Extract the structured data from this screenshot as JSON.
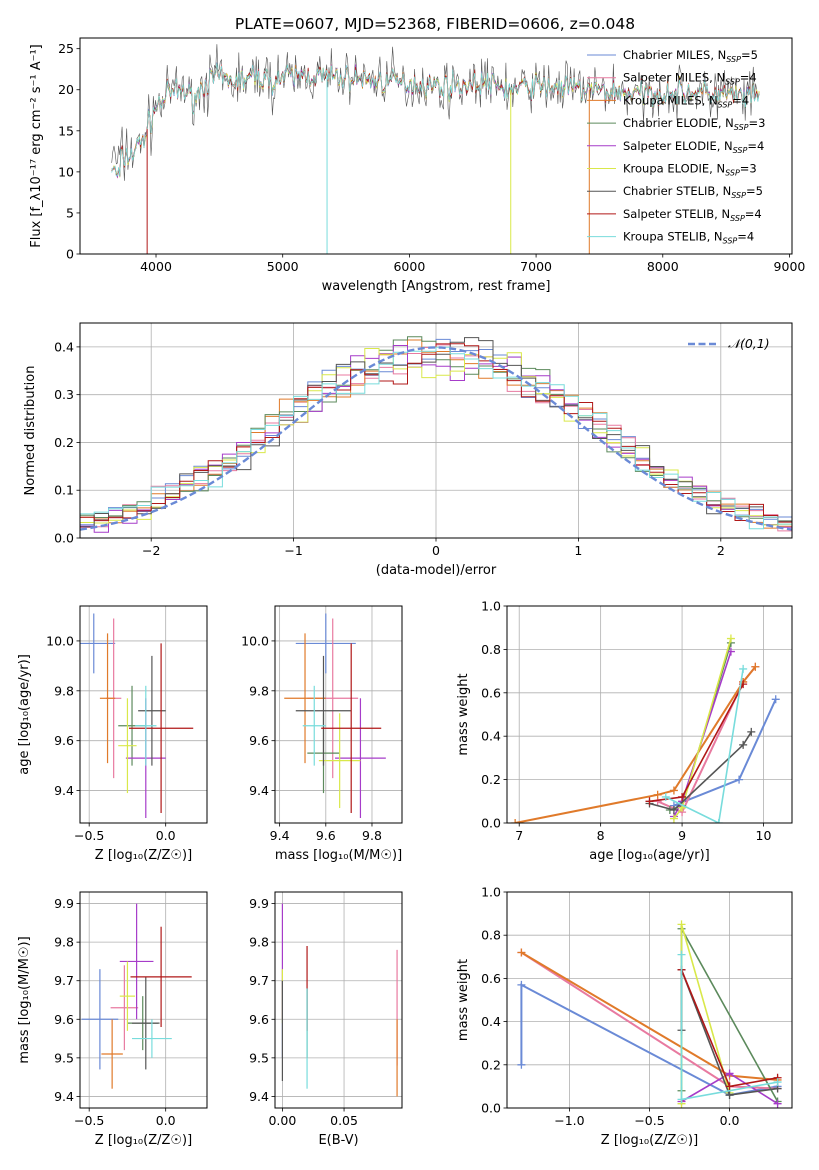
{
  "figure": {
    "title": "PLATE=0607, MJD=52368, FIBERID=0606, z=0.048"
  },
  "palette": [
    "#6a8ad6",
    "#e87aa0",
    "#e07a2a",
    "#5c8a5c",
    "#a63cc9",
    "#d9e84a",
    "#555555",
    "#b01818",
    "#78dcdc"
  ],
  "chart_data": [
    {
      "id": "spectrum",
      "type": "line",
      "xlabel": "wavelength [Angstrom, rest frame]",
      "ylabel": "Flux [f_λ10⁻¹⁷ erg cm⁻² s⁻¹ A⁻¹]",
      "xlim": [
        3400,
        9020
      ],
      "ylim": [
        0,
        26.3
      ],
      "xticks": [
        4000,
        5000,
        6000,
        7000,
        8000,
        9000
      ],
      "yticks": [
        0,
        5,
        10,
        15,
        20,
        25
      ],
      "legend_position": "right",
      "legend": [
        {
          "label": "Chabrier MILES, N",
          "sub": "SSP",
          "suffix": "=5"
        },
        {
          "label": "Salpeter MILES, N",
          "sub": "SSP",
          "suffix": "=4"
        },
        {
          "label": "Kroupa MILES, N",
          "sub": "SSP",
          "suffix": "=4"
        },
        {
          "label": "Chabrier ELODIE, N",
          "sub": "SSP",
          "suffix": "=3"
        },
        {
          "label": "Salpeter ELODIE, N",
          "sub": "SSP",
          "suffix": "=4"
        },
        {
          "label": "Kroupa ELODIE, N",
          "sub": "SSP",
          "suffix": "=3"
        },
        {
          "label": "Chabrier STELIB, N",
          "sub": "SSP",
          "suffix": "=5"
        },
        {
          "label": "Salpeter STELIB, N",
          "sub": "SSP",
          "suffix": "=4"
        },
        {
          "label": "Kroupa STELIB, N",
          "sub": "SSP",
          "suffix": "=4"
        }
      ],
      "profile": {
        "x": [
          3650,
          3700,
          3800,
          3900,
          4000,
          4100,
          4200,
          4300,
          4400,
          4500,
          4600,
          4700,
          4800,
          4900,
          5000,
          5200,
          5400,
          5600,
          5800,
          6000,
          6200,
          6400,
          6600,
          6800,
          7000,
          7200,
          7400,
          7600,
          7800,
          8000,
          8200,
          8400,
          8600,
          8760
        ],
        "y": [
          12.5,
          11.5,
          12.0,
          14.0,
          18.0,
          19.5,
          20.0,
          19.0,
          21.0,
          21.5,
          21.0,
          21.3,
          21.6,
          21.0,
          21.5,
          21.8,
          21.5,
          21.3,
          21.0,
          20.8,
          20.5,
          20.5,
          20.8,
          20.0,
          20.5,
          20.3,
          20.0,
          19.8,
          19.5,
          19.6,
          19.8,
          19.5,
          19.2,
          18.8
        ]
      },
      "drops": [
        {
          "x": 3930,
          "y": 0,
          "series": "Salpeter STELIB"
        },
        {
          "x": 5350,
          "y": 0,
          "series": "Kroupa STELIB"
        },
        {
          "x": 6800,
          "y": 0,
          "series": "Kroupa ELODIE"
        },
        {
          "x": 7420,
          "y": 0,
          "series": "Kroupa MILES"
        }
      ]
    },
    {
      "id": "residuals",
      "type": "histogram",
      "xlabel": "(data-model)/error",
      "ylabel": "Normed distribution",
      "xlim": [
        -2.5,
        2.5
      ],
      "ylim": [
        0,
        0.45
      ],
      "xticks": [
        -2,
        -1,
        0,
        1,
        2
      ],
      "yticks": [
        0.0,
        0.1,
        0.2,
        0.3,
        0.4
      ],
      "bin_width": 0.1,
      "grid": true,
      "legend_position": "top-right",
      "reference_curve": {
        "name": "𝒩(0,1)",
        "mean": 0,
        "sigma": 1
      }
    },
    {
      "id": "age-vs-z",
      "type": "errorbar",
      "xlabel": "Z [log₁₀(Z/Z☉)]",
      "ylabel": "age  [log₁₀(age/yr)]",
      "xlim": [
        -0.56,
        0.27
      ],
      "ylim": [
        9.27,
        10.14
      ],
      "xticks": [
        -0.5,
        0.0
      ],
      "yticks": [
        9.4,
        9.6,
        9.8,
        10.0
      ],
      "points": [
        {
          "x": -0.47,
          "xerr": 0.14,
          "y": 9.99,
          "yerr": 0.12
        },
        {
          "x": -0.34,
          "xerr": 0.05,
          "y": 9.77,
          "yerr": 0.32
        },
        {
          "x": -0.38,
          "xerr": 0.05,
          "y": 9.77,
          "yerr": 0.26
        },
        {
          "x": -0.22,
          "xerr": 0.09,
          "y": 9.66,
          "yerr": 0.16
        },
        {
          "x": -0.13,
          "xerr": 0.13,
          "y": 9.53,
          "yerr": 0.24
        },
        {
          "x": -0.25,
          "xerr": 0.06,
          "y": 9.58,
          "yerr": 0.19
        },
        {
          "x": -0.09,
          "xerr": 0.09,
          "y": 9.72,
          "yerr": 0.22
        },
        {
          "x": -0.03,
          "xerr": 0.21,
          "y": 9.65,
          "yerr": 0.34
        },
        {
          "x": -0.13,
          "xerr": 0.07,
          "y": 9.66,
          "yerr": 0.16
        }
      ]
    },
    {
      "id": "age-vs-mass",
      "type": "errorbar",
      "xlabel": "mass [log₁₀(M/M☉)]",
      "ylabel": "",
      "xlim": [
        9.38,
        9.93
      ],
      "ylim": [
        9.27,
        10.14
      ],
      "xticks": [
        9.4,
        9.6,
        9.8
      ],
      "yticks": [
        9.4,
        9.6,
        9.8,
        10.0
      ],
      "points": [
        {
          "x": 9.6,
          "xerr": 0.13,
          "y": 9.99,
          "yerr": 0.12
        },
        {
          "x": 9.63,
          "xerr": 0.11,
          "y": 9.77,
          "yerr": 0.32
        },
        {
          "x": 9.51,
          "xerr": 0.09,
          "y": 9.77,
          "yerr": 0.26
        },
        {
          "x": 9.59,
          "xerr": 0.07,
          "y": 9.55,
          "yerr": 0.16
        },
        {
          "x": 9.75,
          "xerr": 0.11,
          "y": 9.53,
          "yerr": 0.24
        },
        {
          "x": 9.66,
          "xerr": 0.09,
          "y": 9.52,
          "yerr": 0.19
        },
        {
          "x": 9.59,
          "xerr": 0.12,
          "y": 9.72,
          "yerr": 0.22
        },
        {
          "x": 9.71,
          "xerr": 0.13,
          "y": 9.65,
          "yerr": 0.34
        },
        {
          "x": 9.55,
          "xerr": 0.05,
          "y": 9.66,
          "yerr": 0.16
        }
      ]
    },
    {
      "id": "weight-vs-age",
      "type": "line",
      "xlabel": "age  [log₁₀(age/yr)]",
      "ylabel": "mass weight",
      "xlim": [
        6.85,
        10.35
      ],
      "ylim": [
        0,
        1.0
      ],
      "xticks": [
        7,
        8,
        9,
        10
      ],
      "yticks": [
        0.0,
        0.2,
        0.4,
        0.6,
        0.8,
        1.0
      ],
      "grid": true,
      "series": [
        {
          "x": [
            8.9,
            9.7,
            10.15
          ],
          "y": [
            0.08,
            0.2,
            0.57
          ]
        },
        {
          "x": [
            8.7,
            9.0,
            9.75,
            9.9
          ],
          "y": [
            0.1,
            0.05,
            0.65,
            0.72
          ]
        },
        {
          "x": [
            6.95,
            8.7,
            8.9,
            9.75,
            9.9
          ],
          "y": [
            0.0,
            0.13,
            0.15,
            0.65,
            0.72
          ]
        },
        {
          "x": [
            8.85,
            9.0,
            9.6
          ],
          "y": [
            0.06,
            0.08,
            0.83
          ]
        },
        {
          "x": [
            8.9,
            9.0,
            9.6
          ],
          "y": [
            0.03,
            0.1,
            0.79
          ]
        },
        {
          "x": [
            8.9,
            9.0,
            9.6
          ],
          "y": [
            0.02,
            0.07,
            0.85
          ]
        },
        {
          "x": [
            8.6,
            8.9,
            9.75,
            9.85
          ],
          "y": [
            0.09,
            0.06,
            0.36,
            0.42
          ]
        },
        {
          "x": [
            8.6,
            9.0,
            9.75
          ],
          "y": [
            0.1,
            0.12,
            0.64
          ]
        },
        {
          "x": [
            8.8,
            9.45,
            9.75
          ],
          "y": [
            0.12,
            0.0,
            0.71
          ]
        }
      ]
    },
    {
      "id": "mass-vs-z",
      "type": "errorbar",
      "xlabel": "Z [log₁₀(Z/Z☉)]",
      "ylabel": "mass [log₁₀(M/M☉)]",
      "xlim": [
        -0.56,
        0.27
      ],
      "ylim": [
        9.37,
        9.93
      ],
      "xticks": [
        -0.5,
        0.0
      ],
      "yticks": [
        9.4,
        9.5,
        9.6,
        9.7,
        9.8,
        9.9
      ],
      "points": [
        {
          "x": -0.43,
          "xerr": 0.12,
          "y": 9.6,
          "yerr": 0.13
        },
        {
          "x": -0.27,
          "xerr": 0.09,
          "y": 9.63,
          "yerr": 0.11
        },
        {
          "x": -0.35,
          "xerr": 0.07,
          "y": 9.51,
          "yerr": 0.09
        },
        {
          "x": -0.15,
          "xerr": 0.1,
          "y": 9.59,
          "yerr": 0.07
        },
        {
          "x": -0.19,
          "xerr": 0.11,
          "y": 9.75,
          "yerr": 0.15
        },
        {
          "x": -0.25,
          "xerr": 0.05,
          "y": 9.66,
          "yerr": 0.09
        },
        {
          "x": -0.13,
          "xerr": 0.09,
          "y": 9.59,
          "yerr": 0.12
        },
        {
          "x": -0.03,
          "xerr": 0.2,
          "y": 9.71,
          "yerr": 0.13
        },
        {
          "x": -0.09,
          "xerr": 0.13,
          "y": 9.55,
          "yerr": 0.05
        }
      ]
    },
    {
      "id": "mass-vs-ebv",
      "type": "errorbar",
      "xlabel": "E(B-V)",
      "ylabel": "",
      "xlim": [
        -0.006,
        0.097
      ],
      "ylim": [
        9.37,
        9.93
      ],
      "xticks": [
        0.0,
        0.05
      ],
      "yticks": [
        9.4,
        9.5,
        9.6,
        9.7,
        9.8,
        9.9
      ],
      "points": [
        {
          "x": 0.0,
          "xerr": 0.0,
          "y": 9.6,
          "yerr": 0.1
        },
        {
          "x": 0.093,
          "xerr": 0.0,
          "y": 9.63,
          "yerr": 0.15
        },
        {
          "x": 0.093,
          "xerr": 0.0,
          "y": 9.5,
          "yerr": 0.1
        },
        {
          "x": 0.02,
          "xerr": 0.0,
          "y": 9.59,
          "yerr": 0.09
        },
        {
          "x": 0.0,
          "xerr": 0.0,
          "y": 9.75,
          "yerr": 0.15
        },
        {
          "x": 0.0,
          "xerr": 0.0,
          "y": 9.66,
          "yerr": 0.07
        },
        {
          "x": 0.0,
          "xerr": 0.0,
          "y": 9.57,
          "yerr": 0.13
        },
        {
          "x": 0.02,
          "xerr": 0.0,
          "y": 9.68,
          "yerr": 0.11
        },
        {
          "x": 0.02,
          "xerr": 0.0,
          "y": 9.55,
          "yerr": 0.13
        }
      ]
    },
    {
      "id": "weight-vs-z",
      "type": "line",
      "xlabel": "Z [log₁₀(Z/Z☉)]",
      "ylabel": "mass weight",
      "xlim": [
        -1.39,
        0.39
      ],
      "ylim": [
        0,
        1.0
      ],
      "xticks": [
        -1.0,
        -0.5,
        0.0
      ],
      "yticks": [
        0.0,
        0.2,
        0.4,
        0.6,
        0.8,
        1.0
      ],
      "grid": true,
      "series": [
        {
          "x": [
            -1.3,
            -1.3,
            0.0,
            0.3
          ],
          "y": [
            0.2,
            0.57,
            0.06,
            0.1
          ]
        },
        {
          "x": [
            -1.3,
            0.0,
            0.3
          ],
          "y": [
            0.72,
            0.1,
            0.09
          ]
        },
        {
          "x": [
            -1.3,
            0.0,
            0.3
          ],
          "y": [
            0.72,
            0.15,
            0.13
          ]
        },
        {
          "x": [
            -0.3,
            -0.3,
            0.3
          ],
          "y": [
            0.08,
            0.83,
            0.03
          ]
        },
        {
          "x": [
            -0.3,
            0.0,
            0.3
          ],
          "y": [
            0.03,
            0.16,
            0.02
          ]
        },
        {
          "x": [
            -0.3,
            -0.3,
            0.0
          ],
          "y": [
            0.02,
            0.85,
            0.07
          ]
        },
        {
          "x": [
            -0.3,
            -0.3,
            0.0,
            0.3
          ],
          "y": [
            0.36,
            0.64,
            0.06,
            0.09
          ]
        },
        {
          "x": [
            -0.3,
            0.0,
            0.3
          ],
          "y": [
            0.64,
            0.1,
            0.14
          ]
        },
        {
          "x": [
            -0.3,
            -0.3,
            0.3
          ],
          "y": [
            0.71,
            0.04,
            0.12
          ]
        }
      ]
    }
  ]
}
